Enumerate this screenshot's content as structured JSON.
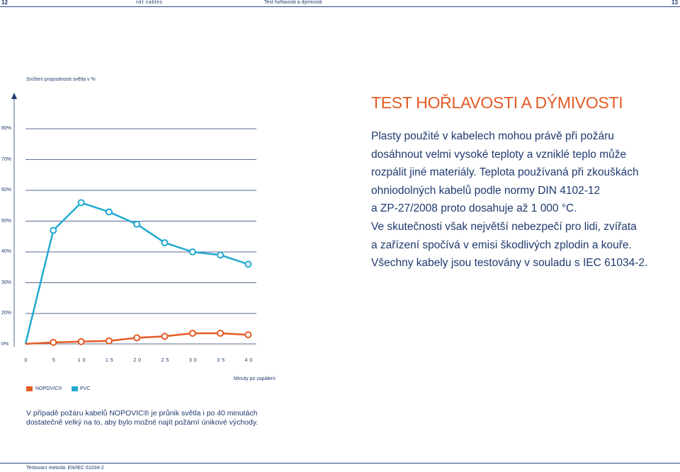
{
  "header": {
    "page_left": "12",
    "brand": "nkt cables",
    "section": "Test hořlavosti a dýmivosti",
    "page_right": "13"
  },
  "title": "TEST HOŘLAVOSTI A DÝMIVOSTI",
  "paragraph_lines": [
    "Plasty použité v kabelech mohou právě při požáru",
    "dosáhnout velmi vysoké teploty a vzniklé teplo může",
    "rozpálit jiné materiály. Teplota používaná při zkouškách",
    "ohniodolných kabelů podle normy DIN 4102-12",
    "a ZP-27/2008 proto dosahuje až 1 000 °C.",
    "Ve skutečnosti však největší nebezpečí pro lidi, zvířata",
    "a zařízení spočívá v emisi škodlivých zplodin a kouře.",
    "Všechny kabely jsou testovány v souladu s IEC 61034-2."
  ],
  "caption_lines": [
    "V případě požáru kabelů NOPOVIC® je průnik světla i po 40 minutách",
    "dostatečně velký na to, aby bylo možné najít požární únikové východy."
  ],
  "footer": "Testovací metoda: EN/IEC 61034-2",
  "chart_data": {
    "type": "line",
    "title": "Snížení propustnosti světla v %",
    "xlabel": "Minuty po zapálení",
    "x_ticks": [
      "0",
      "5",
      "10",
      "15",
      "20",
      "25",
      "30",
      "35",
      "40"
    ],
    "y_ticks": [
      "0%",
      "20%",
      "30%",
      "40%",
      "50%",
      "60%",
      "70%",
      "80%"
    ],
    "grid": "horizontal",
    "legend": "bottom-left",
    "series": [
      {
        "name": "PVC",
        "color": "#21a9cf",
        "x": [
          0,
          5,
          10,
          15,
          20,
          25,
          30,
          35,
          40
        ],
        "y": [
          0,
          47,
          56,
          53,
          49,
          43,
          40,
          39,
          36
        ]
      },
      {
        "name": "NOPOVIC®",
        "color": "#e45a24",
        "x": [
          0,
          5,
          10,
          15,
          20,
          25,
          30,
          35,
          40
        ],
        "y": [
          0,
          1,
          1.5,
          2,
          4,
          5,
          7,
          7,
          6
        ]
      }
    ]
  },
  "colors": {
    "accent": "#e45a24",
    "pvc": "#21a9cf",
    "text": "#1f3a6e"
  }
}
